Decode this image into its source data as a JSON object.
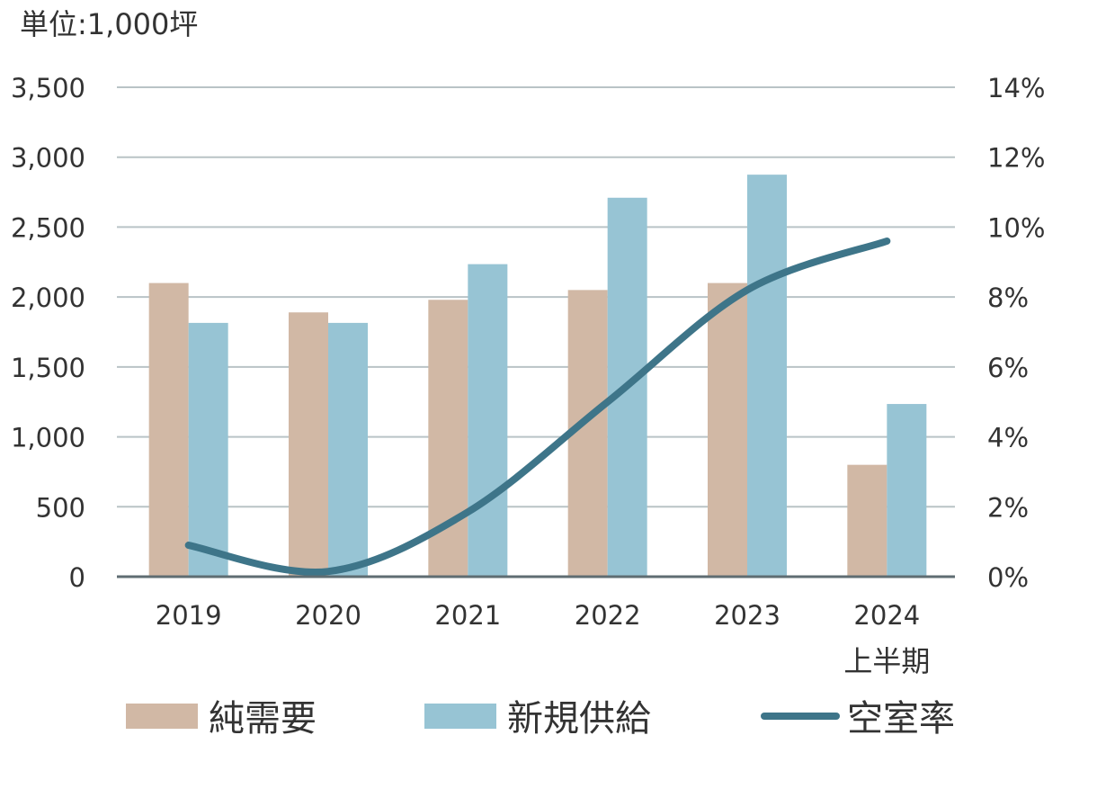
{
  "chart_data": {
    "type": "bar",
    "unit_label": "単位:1,000坪",
    "categories": [
      "2019",
      "2020",
      "2021",
      "2022",
      "2023",
      "2024"
    ],
    "category_sublabels": [
      "",
      "",
      "",
      "",
      "",
      "上半期"
    ],
    "series": [
      {
        "name": "純需要",
        "type": "bar",
        "axis": "left",
        "color": "#d1b8a5",
        "values": [
          2100,
          1890,
          1980,
          2050,
          2100,
          800
        ]
      },
      {
        "name": "新規供給",
        "type": "bar",
        "axis": "left",
        "color": "#97c4d4",
        "values": [
          1815,
          1815,
          2235,
          2710,
          2875,
          1235
        ]
      },
      {
        "name": "空室率",
        "type": "line",
        "axis": "right",
        "color": "#3e7589",
        "values": [
          0.9,
          0.15,
          1.85,
          5.0,
          8.2,
          9.6
        ]
      }
    ],
    "left_axis": {
      "ylim": [
        0,
        3500
      ],
      "ticks": [
        "0",
        "500",
        "1,000",
        "1,500",
        "2,000",
        "2,500",
        "3,000",
        "3,500"
      ],
      "tick_values": [
        0,
        500,
        1000,
        1500,
        2000,
        2500,
        3000,
        3500
      ]
    },
    "right_axis": {
      "ylim": [
        0,
        14
      ],
      "ticks": [
        "0%",
        "2%",
        "4%",
        "6%",
        "8%",
        "10%",
        "12%",
        "14%"
      ],
      "tick_values": [
        0,
        2,
        4,
        6,
        8,
        10,
        12,
        14
      ]
    },
    "grid": true,
    "legend_position": "bottom"
  }
}
